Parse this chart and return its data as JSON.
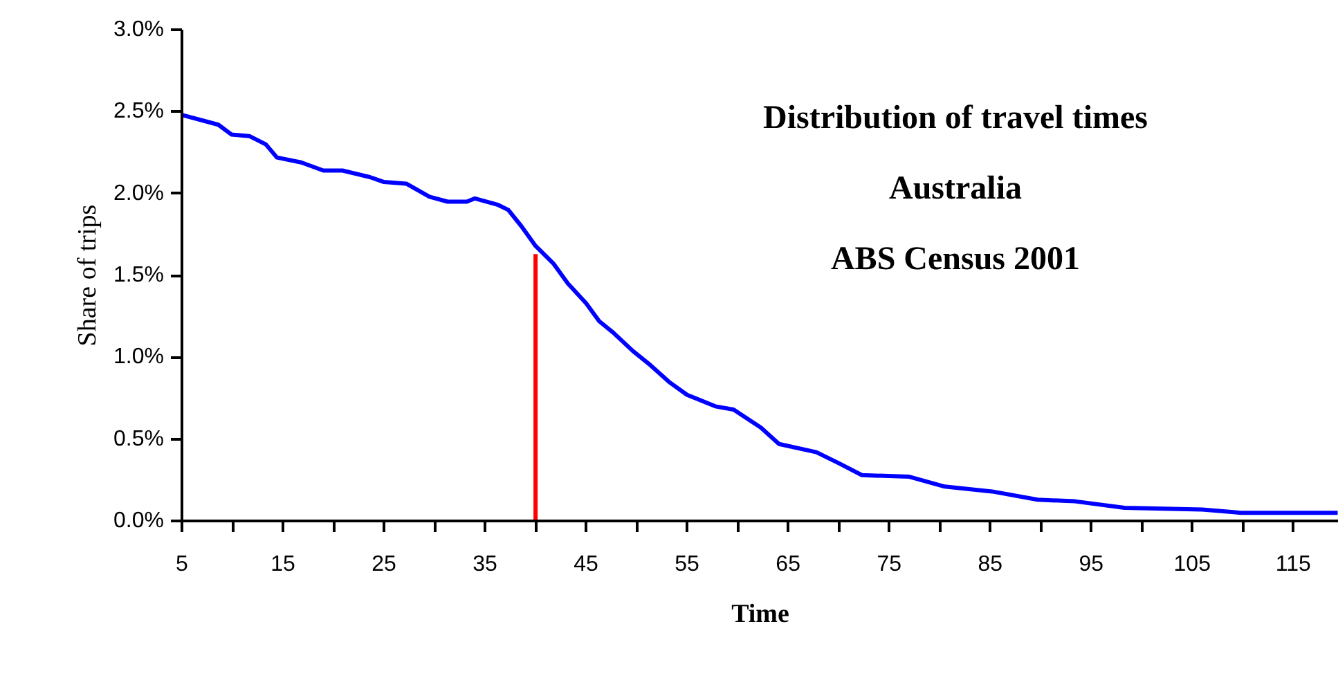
{
  "chart_data": {
    "type": "line",
    "title": "Distribution of travel times",
    "subtitle": "Australia",
    "annotations": [
      "ABS Census 2001"
    ],
    "xlabel": "Time",
    "ylabel": "Share of trips",
    "xlim": [
      5,
      119.5
    ],
    "ylim": [
      0,
      3.0
    ],
    "xticks": [
      5,
      {
        "value": 10,
        "label": null
      },
      15,
      {
        "value": 20,
        "label": null
      },
      25,
      {
        "value": 30,
        "label": null
      },
      35,
      {
        "value": 40,
        "label": null
      },
      45,
      {
        "value": 50,
        "label": null
      },
      55,
      {
        "value": 60,
        "label": null
      },
      65,
      {
        "value": 70,
        "label": null
      },
      75,
      {
        "value": 80,
        "label": null
      },
      85,
      {
        "value": 90,
        "label": null
      },
      95,
      {
        "value": 100,
        "label": null
      },
      105,
      {
        "value": 110,
        "label": null
      },
      115
    ],
    "yticks": [
      {
        "value": 0,
        "label": "0.0%"
      },
      {
        "value": 0.5,
        "label": "0.5%"
      },
      {
        "value": 1.0,
        "label": "1.0%"
      },
      {
        "value": 1.5,
        "label": "1.5%"
      },
      {
        "value": 2.0,
        "label": "2.0%"
      },
      {
        "value": 2.5,
        "label": "2.5%"
      },
      {
        "value": 3.0,
        "label": "3.0%"
      }
    ],
    "grid": false,
    "series": [
      {
        "color": "#0000ff",
        "x": [
          5,
          8.6,
          9.9,
          11.7,
          13.3,
          14.4,
          16.8,
          19,
          20.9,
          23.6,
          25,
          27.2,
          29.5,
          31.3,
          33.2,
          34,
          36.3,
          37.3,
          38.6,
          40,
          41.8,
          43.2,
          45,
          46.3,
          47.7,
          49.6,
          51.4,
          53.2,
          55,
          57.8,
          59.6,
          62.3,
          64.1,
          67.8,
          70.1,
          72.3,
          77,
          80.5,
          85.2,
          89.7,
          93.4,
          98.3,
          106,
          109.8,
          119.4
        ],
        "values": [
          2.48,
          2.42,
          2.36,
          2.35,
          2.3,
          2.22,
          2.19,
          2.14,
          2.14,
          2.1,
          2.07,
          2.06,
          1.98,
          1.95,
          1.95,
          1.97,
          1.93,
          1.9,
          1.8,
          1.68,
          1.57,
          1.45,
          1.33,
          1.22,
          1.15,
          1.04,
          0.95,
          0.85,
          0.77,
          0.7,
          0.68,
          0.57,
          0.47,
          0.42,
          0.35,
          0.28,
          0.27,
          0.21,
          0.18,
          0.13,
          0.12,
          0.08,
          0.07,
          0.05,
          0.05
        ]
      },
      {
        "color": "#ff0000",
        "x": [
          40,
          40
        ],
        "values": [
          0,
          1.63
        ]
      }
    ]
  }
}
